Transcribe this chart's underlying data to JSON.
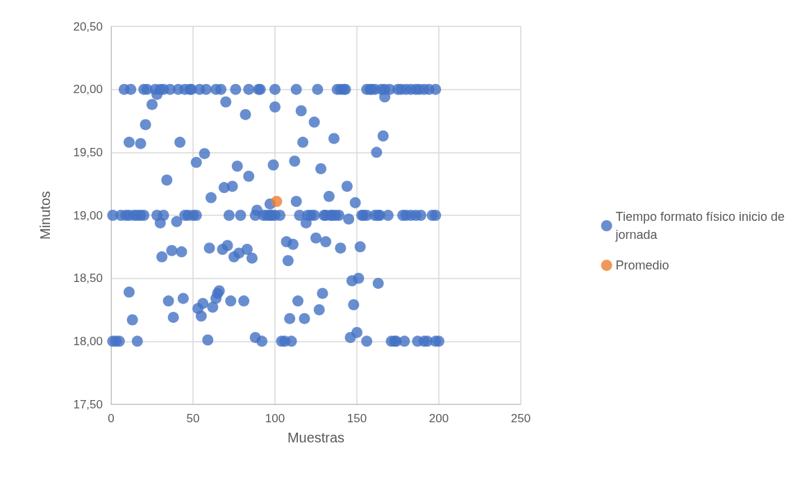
{
  "chart_data": {
    "type": "scatter",
    "xlabel": "Muestras",
    "ylabel": "Minutos",
    "xlim": [
      0,
      250
    ],
    "xticks": [
      0,
      50,
      100,
      150,
      200,
      250
    ],
    "ylim": [
      17.5,
      20.5
    ],
    "yticks": [
      {
        "value": 17.5,
        "label": "17,50"
      },
      {
        "value": 18,
        "label": "18,00"
      },
      {
        "value": 18.5,
        "label": "18,50"
      },
      {
        "value": 19,
        "label": "19,00"
      },
      {
        "value": 19.5,
        "label": "19,50"
      },
      {
        "value": 20,
        "label": "20,00"
      },
      {
        "value": 20.5,
        "label": "20,50"
      }
    ],
    "grid": true,
    "legend": "right",
    "marker": "circle",
    "series": [
      {
        "name": "Tiempo formato físico inicio de jornada",
        "color": "#4472c4",
        "x": [
          8,
          12,
          20,
          22,
          27,
          30,
          32,
          36,
          41,
          45,
          48,
          49,
          54,
          58,
          64,
          67,
          76,
          84,
          90,
          91,
          100,
          113,
          126,
          138,
          140,
          142,
          143,
          156,
          158,
          159,
          161,
          165,
          167,
          170,
          175,
          177,
          180,
          183,
          186,
          188,
          191,
          194,
          198,
          25,
          28,
          167,
          100,
          11,
          21,
          18,
          34,
          42,
          52,
          57,
          61,
          69,
          70,
          74,
          77,
          82,
          84,
          89,
          97,
          99,
          112,
          113,
          116,
          117,
          124,
          128,
          133,
          136,
          144,
          149,
          162,
          166,
          1,
          6,
          9,
          11,
          14,
          16,
          18,
          20,
          28,
          32,
          45,
          47,
          50,
          52,
          72,
          79,
          88,
          93,
          95,
          97,
          98,
          100,
          103,
          115,
          120,
          122,
          124,
          130,
          131,
          134,
          135,
          137,
          139,
          153,
          154,
          156,
          161,
          163,
          164,
          169,
          178,
          180,
          183,
          186,
          189,
          196,
          198,
          30,
          31,
          37,
          40,
          43,
          60,
          68,
          71,
          75,
          78,
          83,
          86,
          107,
          108,
          111,
          119,
          125,
          131,
          140,
          145,
          152,
          11,
          13,
          35,
          38,
          44,
          53,
          55,
          56,
          62,
          64,
          65,
          66,
          73,
          81,
          109,
          114,
          118,
          127,
          129,
          147,
          148,
          150,
          151,
          163,
          146,
          88,
          59,
          1,
          3,
          5,
          16,
          92,
          104,
          106,
          110,
          156,
          171,
          173,
          174,
          179,
          187,
          191,
          193,
          198,
          200
        ],
        "values": [
          20,
          20,
          20,
          20,
          20,
          20,
          20,
          20,
          20,
          20,
          20,
          20,
          20,
          20,
          20,
          20,
          20,
          20,
          20,
          20,
          20,
          20,
          20,
          20,
          20,
          20,
          20,
          20,
          20,
          20,
          20,
          20,
          20,
          20,
          20,
          20,
          20,
          20,
          20,
          20,
          20,
          20,
          20,
          19.88,
          19.96,
          19.94,
          19.86,
          19.58,
          19.72,
          19.57,
          19.28,
          19.58,
          19.42,
          19.49,
          19.14,
          19.22,
          19.9,
          19.23,
          19.39,
          19.8,
          19.31,
          19.04,
          19.09,
          19.4,
          19.43,
          19.11,
          19.83,
          19.58,
          19.74,
          19.37,
          19.15,
          19.61,
          19.23,
          19.1,
          19.5,
          19.63,
          19,
          19,
          19,
          19,
          19,
          19,
          19,
          19,
          19,
          19,
          19,
          19,
          19,
          19,
          19,
          19,
          19,
          19,
          19,
          19,
          19,
          19,
          19,
          19,
          19,
          19,
          19,
          19,
          19,
          19,
          19,
          19,
          19,
          19,
          19,
          19,
          19,
          19,
          19,
          19,
          19,
          19,
          19,
          19,
          19,
          19,
          19,
          18.94,
          18.67,
          18.72,
          18.95,
          18.71,
          18.74,
          18.73,
          18.76,
          18.67,
          18.7,
          18.73,
          18.66,
          18.79,
          18.64,
          18.77,
          18.94,
          18.82,
          18.79,
          18.74,
          18.97,
          18.75,
          18.39,
          18.17,
          18.32,
          18.19,
          18.34,
          18.26,
          18.2,
          18.3,
          18.27,
          18.34,
          18.38,
          18.4,
          18.32,
          18.32,
          18.18,
          18.32,
          18.18,
          18.25,
          18.38,
          18.48,
          18.29,
          18.07,
          18.5,
          18.46,
          18.03,
          18.03,
          18.01,
          18,
          18,
          18,
          18,
          18,
          18,
          18,
          18,
          18,
          18,
          18,
          18,
          18,
          18,
          18,
          18,
          18,
          18
        ]
      },
      {
        "name": "Promedio",
        "color": "#ed7d31",
        "x": [
          101
        ],
        "values": [
          19.11
        ]
      }
    ]
  }
}
